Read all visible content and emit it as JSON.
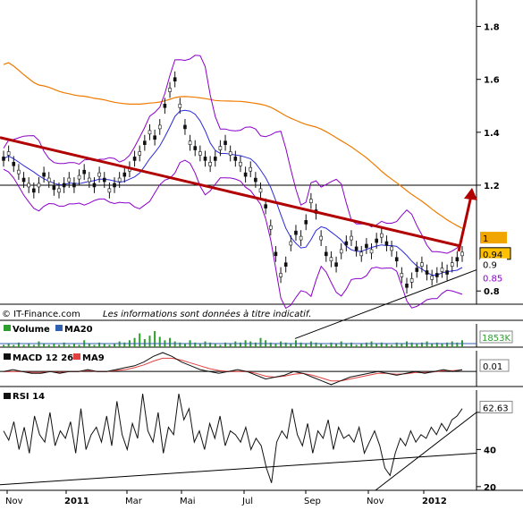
{
  "chart_data": [
    {
      "type": "line",
      "panel": "price",
      "ylabel": "",
      "ylim": [
        0.75,
        1.9
      ],
      "y_ticks": [
        0.8,
        1.2,
        1.4,
        1.6,
        1.8
      ],
      "tick_labels": [
        "0.8",
        "1.2",
        "1.4",
        "1.6",
        "1.8"
      ],
      "price_series_color": "#111111",
      "boll_color": "#8a00c8",
      "ma_color": "#ef7b00",
      "ma_short_color": "#2b2bd8",
      "trend_color": "#b00000",
      "hline_value": 1.2,
      "badges": [
        {
          "label": "1",
          "value": 1.0,
          "color": "#f0a500",
          "text_color": "#000000"
        },
        {
          "label": "0.94",
          "value": 0.94,
          "color": "#ffc000",
          "text_color": "#000000"
        },
        {
          "label": "0.9",
          "value": 0.9,
          "color": "#ffffff",
          "text_color": "#000000"
        },
        {
          "label": "0.85",
          "value": 0.85,
          "color": "#ffffff",
          "text_color": "#8a00c8"
        }
      ],
      "price_series": [
        1.3,
        1.32,
        1.28,
        1.25,
        1.22,
        1.2,
        1.18,
        1.2,
        1.24,
        1.22,
        1.19,
        1.18,
        1.2,
        1.22,
        1.2,
        1.23,
        1.25,
        1.22,
        1.2,
        1.24,
        1.22,
        1.18,
        1.2,
        1.22,
        1.24,
        1.26,
        1.3,
        1.32,
        1.36,
        1.4,
        1.38,
        1.42,
        1.5,
        1.56,
        1.6,
        1.5,
        1.42,
        1.36,
        1.34,
        1.32,
        1.3,
        1.28,
        1.3,
        1.34,
        1.36,
        1.32,
        1.3,
        1.28,
        1.24,
        1.26,
        1.22,
        1.18,
        1.12,
        1.04,
        0.94,
        0.86,
        0.9,
        0.98,
        1.02,
        1.0,
        1.06,
        1.14,
        1.1,
        1.0,
        0.94,
        0.92,
        0.9,
        0.95,
        0.98,
        1.0,
        0.96,
        0.94,
        0.97,
        0.95,
        0.99,
        1.01,
        0.98,
        0.96,
        0.92,
        0.86,
        0.82,
        0.84,
        0.88,
        0.9,
        0.87,
        0.85,
        0.86,
        0.88,
        0.87,
        0.9,
        0.92,
        0.94
      ]
    },
    {
      "type": "bar",
      "panel": "volume",
      "legend": [
        {
          "name": "Volume",
          "color": "#2e9e2e"
        },
        {
          "name": "MA20",
          "color": "#3060b0"
        }
      ],
      "badges": [
        {
          "label": "1853K",
          "color": "#ffffff",
          "text_color": "#2e9e2e"
        }
      ],
      "values": [
        2,
        3,
        2,
        4,
        2,
        3,
        2,
        5,
        3,
        2,
        3,
        2,
        4,
        2,
        3,
        2,
        6,
        3,
        2,
        4,
        3,
        2,
        3,
        5,
        4,
        6,
        8,
        12,
        7,
        10,
        14,
        9,
        6,
        8,
        5,
        4,
        3,
        6,
        4,
        3,
        5,
        4,
        3,
        2,
        4,
        3,
        5,
        4,
        6,
        5,
        4,
        8,
        6,
        4,
        3,
        5,
        4,
        3,
        6,
        4,
        3,
        5,
        4,
        3,
        2,
        4,
        3,
        5,
        3,
        4,
        2,
        3,
        4,
        5,
        3,
        4,
        3,
        2,
        4,
        3,
        5,
        4,
        3,
        4,
        5,
        3,
        4,
        3,
        4,
        5,
        4,
        6
      ]
    },
    {
      "type": "line",
      "panel": "macd",
      "legend": [
        {
          "name": "MACD 12 26",
          "color": "#111111"
        },
        {
          "name": "MA9",
          "color": "#e04040"
        }
      ],
      "badges": [
        {
          "label": "0.01",
          "color": "#ffffff",
          "text_color": "#000000"
        }
      ],
      "macd": [
        0.0,
        0.01,
        0.0,
        -0.01,
        -0.01,
        0.0,
        -0.01,
        0.0,
        0.0,
        0.01,
        0.0,
        0.0,
        0.01,
        0.02,
        0.03,
        0.05,
        0.08,
        0.1,
        0.08,
        0.05,
        0.03,
        0.01,
        0.0,
        -0.01,
        0.0,
        0.01,
        0.0,
        -0.02,
        -0.04,
        -0.03,
        -0.02,
        0.0,
        -0.01,
        -0.03,
        -0.05,
        -0.07,
        -0.05,
        -0.03,
        -0.02,
        -0.01,
        0.0,
        -0.01,
        -0.02,
        -0.01,
        0.0,
        -0.01,
        0.0,
        0.01,
        0.0,
        0.01
      ],
      "signal": [
        0.0,
        0.0,
        0.0,
        -0.005,
        -0.005,
        0.0,
        -0.005,
        0.0,
        0.0,
        0.005,
        0.0,
        0.0,
        0.005,
        0.01,
        0.02,
        0.035,
        0.055,
        0.07,
        0.07,
        0.06,
        0.045,
        0.03,
        0.015,
        0.005,
        0.0,
        0.0,
        0.0,
        -0.01,
        -0.025,
        -0.03,
        -0.025,
        -0.015,
        -0.01,
        -0.02,
        -0.035,
        -0.05,
        -0.05,
        -0.04,
        -0.03,
        -0.02,
        -0.01,
        -0.01,
        -0.015,
        -0.012,
        -0.006,
        -0.006,
        -0.002,
        0.004,
        0.004,
        0.008
      ],
      "ylim": [
        -0.08,
        0.11
      ]
    },
    {
      "type": "line",
      "panel": "rsi",
      "legend": [
        {
          "name": "RSI 14",
          "color": "#111111"
        }
      ],
      "badges": [
        {
          "label": "62.63",
          "color": "#ffffff",
          "text_color": "#000000"
        }
      ],
      "y_ticks": [
        20,
        40,
        60
      ],
      "tick_labels": [
        "20",
        "40",
        ""
      ],
      "ylim": [
        18,
        72
      ],
      "values": [
        50,
        45,
        55,
        40,
        52,
        38,
        58,
        48,
        44,
        60,
        42,
        50,
        46,
        55,
        38,
        62,
        40,
        48,
        52,
        44,
        58,
        42,
        66,
        48,
        40,
        54,
        46,
        70,
        50,
        44,
        60,
        38,
        52,
        48,
        70,
        56,
        62,
        44,
        50,
        40,
        54,
        46,
        58,
        42,
        50,
        48,
        44,
        52,
        40,
        46,
        42,
        30,
        22,
        44,
        50,
        46,
        62,
        48,
        42,
        54,
        38,
        50,
        46,
        56,
        40,
        52,
        46,
        48,
        44,
        52,
        38,
        44,
        50,
        42,
        30,
        26,
        38,
        46,
        42,
        50,
        44,
        48,
        46,
        52,
        48,
        54,
        50,
        56,
        58,
        62
      ]
    }
  ],
  "x_axis": {
    "labels": [
      "Nov",
      "2011",
      "Mar",
      "Mai",
      "Jul",
      "Sep",
      "Nov",
      "2012"
    ],
    "bold": [
      false,
      true,
      false,
      false,
      false,
      false,
      false,
      true
    ]
  },
  "footer": {
    "source": "© IT-Finance.com",
    "disclaimer": "Les informations sont données à titre indicatif."
  }
}
